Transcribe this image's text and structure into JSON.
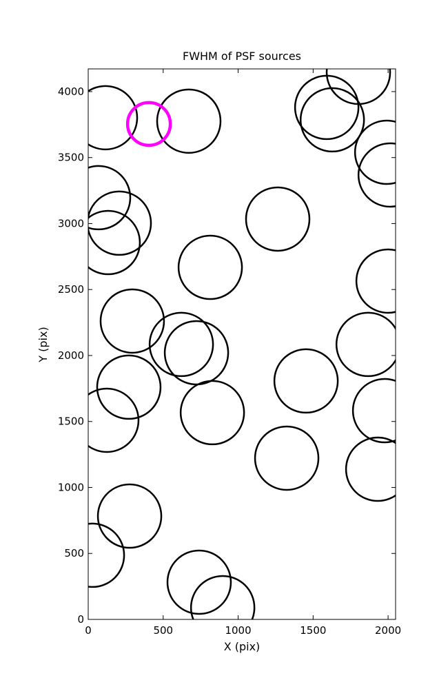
{
  "chart_data": {
    "type": "scatter",
    "title": "FWHM of PSF sources",
    "x_label": "X (pix)",
    "y_label": "Y (pix)",
    "xlim": [
      0,
      2050
    ],
    "ylim": [
      0,
      4172
    ],
    "xticks": [
      0,
      500,
      1000,
      1500,
      2000
    ],
    "yticks": [
      0,
      500,
      1000,
      1500,
      2000,
      2500,
      3000,
      3500,
      4000
    ],
    "marker": "open-circle",
    "series": [
      {
        "color": "#000000",
        "x": [
          115,
          671,
          1802,
          1591,
          1628,
          1991,
          2014,
          69,
          207,
          133,
          1264,
          814,
          2000,
          294,
          621,
          722,
          1867,
          1453,
          271,
          124,
          828,
          1977,
          1324,
          1931,
          276,
          28,
          740,
          897
        ],
        "values": [
          3802,
          3776,
          4146,
          3880,
          3786,
          3540,
          3368,
          3196,
          3003,
          2856,
          3034,
          2668,
          2564,
          2261,
          2084,
          2021,
          2084,
          1807,
          1760,
          1509,
          1567,
          1582,
          1222,
          1138,
          783,
          486,
          282,
          89
        ]
      },
      {
        "color": "#ff00ff",
        "x": [
          405
        ],
        "values": [
          3755
        ]
      }
    ]
  }
}
